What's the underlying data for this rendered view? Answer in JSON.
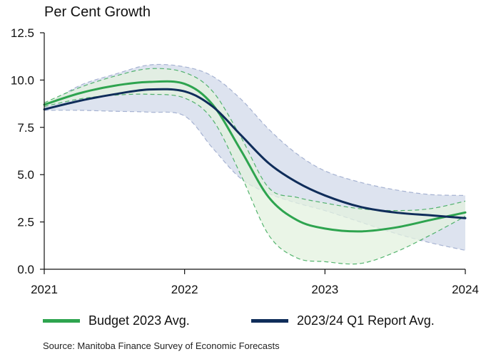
{
  "chart_data": {
    "type": "line",
    "title": "",
    "ylabel": "Per Cent Growth",
    "xlabel": "",
    "ylim": [
      0,
      12.5
    ],
    "xlim": [
      2021,
      2024
    ],
    "xticks": [
      2021,
      2022,
      2023,
      2024
    ],
    "yticks": [
      0.0,
      2.5,
      5.0,
      7.5,
      10.0,
      12.5
    ],
    "ytick_labels": [
      "0.0",
      "2.5",
      "5.0",
      "7.5",
      "10.0",
      "12.5"
    ],
    "grid": false,
    "legend_position": "bottom",
    "series": [
      {
        "name": "Budget 2023 Avg.",
        "color": "#2ea44f",
        "x": [
          2021.0,
          2021.25,
          2021.5,
          2021.75,
          2022.0,
          2022.2,
          2022.4,
          2022.6,
          2022.8,
          2023.0,
          2023.25,
          2023.5,
          2023.75,
          2024.0
        ],
        "values": [
          8.7,
          9.3,
          9.7,
          9.9,
          9.8,
          8.7,
          6.3,
          3.8,
          2.6,
          2.15,
          2.0,
          2.2,
          2.6,
          3.0
        ]
      },
      {
        "name": "2023/24 Q1 Report Avg.",
        "color": "#0f2d5a",
        "x": [
          2021.0,
          2021.25,
          2021.5,
          2021.75,
          2022.0,
          2022.2,
          2022.4,
          2022.6,
          2022.8,
          2023.0,
          2023.25,
          2023.5,
          2023.75,
          2024.0
        ],
        "values": [
          8.45,
          8.9,
          9.25,
          9.5,
          9.4,
          8.6,
          7.1,
          5.6,
          4.6,
          3.9,
          3.3,
          3.0,
          2.85,
          2.7
        ]
      }
    ],
    "ranges": [
      {
        "name": "Budget 2023 range",
        "color": "#2ea44f",
        "fill": "#e3f1df",
        "x": [
          2021.0,
          2021.25,
          2021.5,
          2021.75,
          2022.0,
          2022.2,
          2022.4,
          2022.6,
          2022.8,
          2023.0,
          2023.25,
          2023.5,
          2023.75,
          2024.0
        ],
        "upper": [
          8.8,
          9.6,
          10.2,
          10.6,
          10.4,
          9.4,
          7.0,
          4.3,
          3.8,
          3.5,
          3.2,
          3.1,
          3.2,
          3.6
        ],
        "lower": [
          8.6,
          9.0,
          9.2,
          9.25,
          9.05,
          7.9,
          5.0,
          1.8,
          0.6,
          0.4,
          0.3,
          0.9,
          1.8,
          2.8
        ]
      },
      {
        "name": "2023/24 Q1 Report range",
        "color": "#94a3c8",
        "fill": "#dde3ef",
        "x": [
          2021.0,
          2021.25,
          2021.5,
          2021.75,
          2022.0,
          2022.2,
          2022.4,
          2022.6,
          2022.8,
          2023.0,
          2023.25,
          2023.5,
          2023.75,
          2024.0
        ],
        "upper": [
          8.6,
          9.7,
          10.3,
          10.8,
          10.7,
          10.2,
          9.0,
          7.4,
          6.1,
          5.2,
          4.6,
          4.2,
          3.95,
          3.9
        ],
        "lower": [
          8.4,
          8.4,
          8.35,
          8.3,
          8.1,
          6.4,
          4.8,
          4.0,
          3.5,
          3.1,
          2.5,
          1.9,
          1.4,
          1.0
        ]
      }
    ]
  },
  "legend": {
    "items": [
      {
        "label": "Budget 2023 Avg.",
        "color": "#2ea44f"
      },
      {
        "label": "2023/24 Q1 Report Avg.",
        "color": "#0f2d5a"
      }
    ]
  },
  "footer": {
    "source": "Source: Manitoba Finance Survey of Economic Forecasts"
  }
}
